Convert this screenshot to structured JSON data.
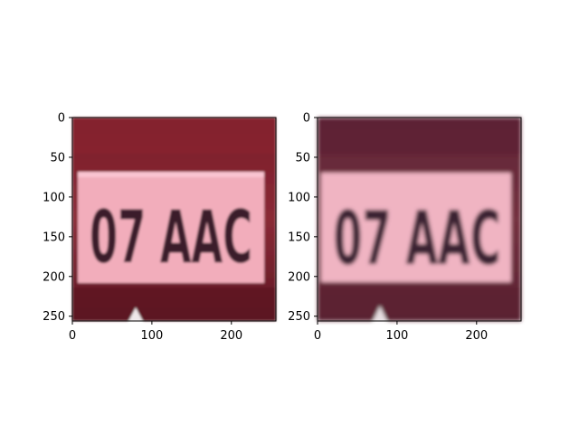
{
  "chart_data": [
    {
      "type": "image",
      "title": "",
      "xlabel": "",
      "ylabel": "",
      "xlim": [
        0,
        256
      ],
      "ylim": [
        256,
        0
      ],
      "xticks": [
        0,
        100,
        200
      ],
      "yticks": [
        0,
        50,
        100,
        150,
        200,
        250
      ],
      "image_content": {
        "plate_text": "07 AAC",
        "background_color": "#7b1f2c",
        "plate_color": "#f4b3c0",
        "text_color": "#3a1d2a"
      }
    },
    {
      "type": "image",
      "title": "",
      "xlabel": "",
      "ylabel": "",
      "xlim": [
        0,
        256
      ],
      "ylim": [
        256,
        0
      ],
      "xticks": [
        0,
        100,
        200
      ],
      "yticks": [
        0,
        50,
        100,
        150,
        200,
        250
      ],
      "image_content": {
        "plate_text": "07 AAC",
        "background_color": "#6a2638",
        "plate_color": "#f2b6c4",
        "text_color": "#3b2030"
      }
    }
  ]
}
